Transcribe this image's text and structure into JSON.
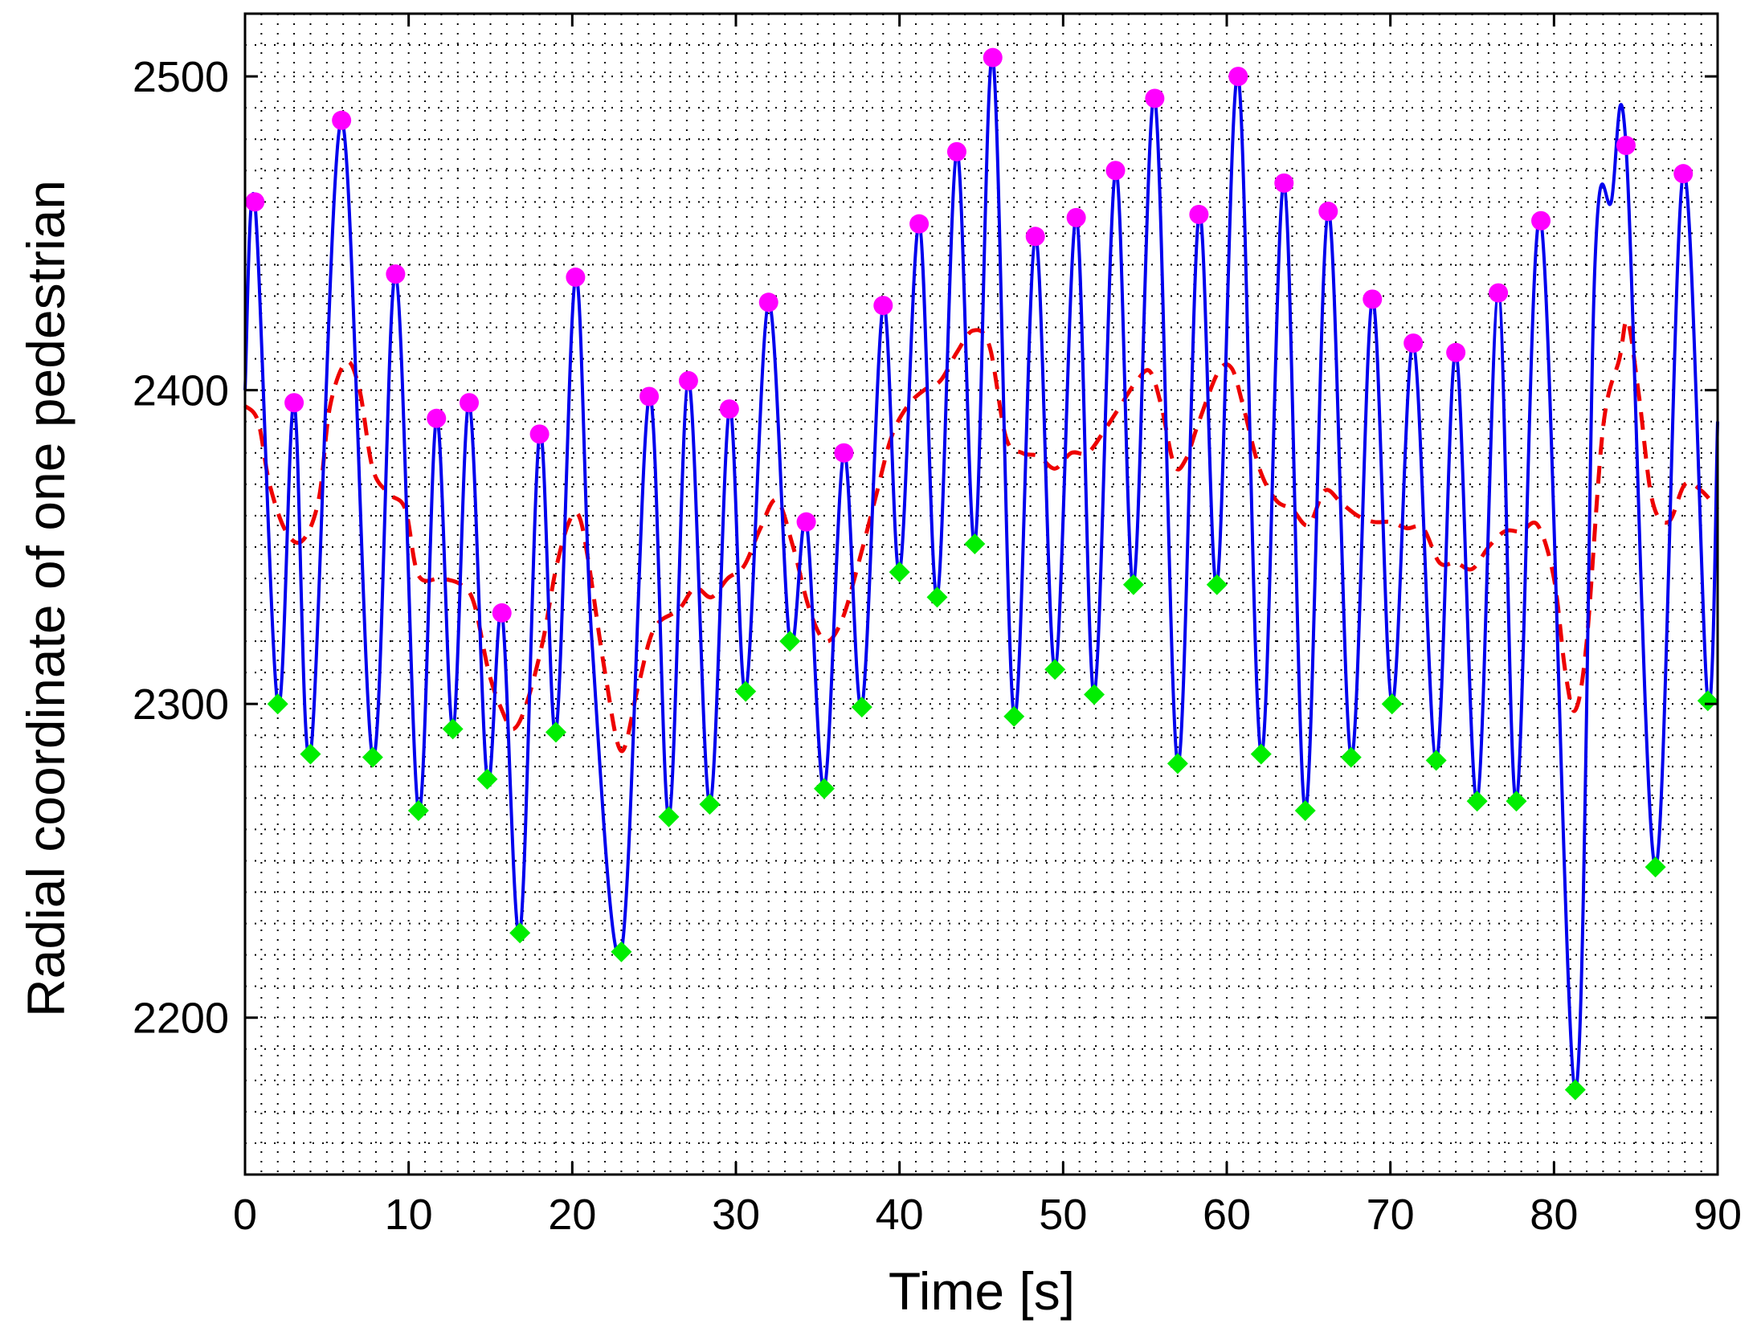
{
  "chart_data": {
    "type": "line",
    "title": "",
    "xlabel": "Time [s]",
    "ylabel": "Radial coordinate of one pedestrian",
    "xlim": [
      0,
      90
    ],
    "ylim": [
      2150,
      2520
    ],
    "xticks": [
      0,
      10,
      20,
      30,
      40,
      50,
      60,
      70,
      80,
      90
    ],
    "yticks": [
      2200,
      2300,
      2400,
      2500
    ],
    "xtick_labels": [
      "0",
      "10",
      "20",
      "30",
      "40",
      "50",
      "60",
      "70",
      "80",
      "90"
    ],
    "ytick_labels": [
      "2200",
      "2300",
      "2400",
      "2500"
    ],
    "grid": "dotted",
    "legend": "none",
    "colors": {
      "trajectory": "#0000ee",
      "smoothed": "#ee0000",
      "maxima": "#ff00ff",
      "minima": "#00ee00"
    },
    "series": [
      {
        "role": "trajectory",
        "style": "solid",
        "points": [
          [
            0,
            2400
          ],
          [
            0.6,
            2460
          ],
          [
            2.0,
            2300
          ],
          [
            3.0,
            2396
          ],
          [
            4.0,
            2284
          ],
          [
            5.9,
            2486
          ],
          [
            7.8,
            2283
          ],
          [
            9.2,
            2437
          ],
          [
            10.6,
            2266
          ],
          [
            11.7,
            2391
          ],
          [
            12.7,
            2292
          ],
          [
            13.7,
            2396
          ],
          [
            14.8,
            2276
          ],
          [
            15.7,
            2329
          ],
          [
            16.8,
            2227
          ],
          [
            18.0,
            2386
          ],
          [
            19.0,
            2291
          ],
          [
            20.2,
            2436
          ],
          [
            21.2,
            2320
          ],
          [
            23.0,
            2221
          ],
          [
            24.7,
            2398
          ],
          [
            25.9,
            2264
          ],
          [
            27.1,
            2403
          ],
          [
            28.4,
            2268
          ],
          [
            29.6,
            2394
          ],
          [
            30.6,
            2304
          ],
          [
            32.0,
            2428
          ],
          [
            33.3,
            2320
          ],
          [
            34.3,
            2358
          ],
          [
            35.4,
            2273
          ],
          [
            36.6,
            2380
          ],
          [
            37.7,
            2299
          ],
          [
            39.0,
            2427
          ],
          [
            40.0,
            2342
          ],
          [
            41.2,
            2453
          ],
          [
            42.3,
            2334
          ],
          [
            43.5,
            2476
          ],
          [
            44.6,
            2351
          ],
          [
            45.7,
            2506
          ],
          [
            47.0,
            2296
          ],
          [
            48.3,
            2449
          ],
          [
            49.5,
            2311
          ],
          [
            50.8,
            2455
          ],
          [
            51.9,
            2303
          ],
          [
            53.2,
            2470
          ],
          [
            54.3,
            2338
          ],
          [
            55.6,
            2493
          ],
          [
            57.0,
            2281
          ],
          [
            58.3,
            2456
          ],
          [
            59.4,
            2338
          ],
          [
            60.7,
            2500
          ],
          [
            62.1,
            2284
          ],
          [
            63.5,
            2466
          ],
          [
            64.8,
            2266
          ],
          [
            66.2,
            2457
          ],
          [
            67.6,
            2283
          ],
          [
            68.9,
            2429
          ],
          [
            70.1,
            2300
          ],
          [
            71.4,
            2415
          ],
          [
            72.8,
            2282
          ],
          [
            74.0,
            2412
          ],
          [
            75.3,
            2269
          ],
          [
            76.6,
            2431
          ],
          [
            77.7,
            2269
          ],
          [
            79.2,
            2454
          ],
          [
            81.3,
            2177
          ],
          [
            82.5,
            2440
          ],
          [
            83.5,
            2460
          ],
          [
            84.4,
            2478
          ],
          [
            86.2,
            2248
          ],
          [
            87.9,
            2469
          ],
          [
            89.4,
            2301
          ],
          [
            90.0,
            2390
          ]
        ]
      },
      {
        "role": "smoothed",
        "style": "dashed",
        "points": [
          [
            0,
            2395
          ],
          [
            0.8,
            2390
          ],
          [
            1.5,
            2370
          ],
          [
            2.5,
            2355
          ],
          [
            3.5,
            2352
          ],
          [
            4.5,
            2365
          ],
          [
            5.2,
            2395
          ],
          [
            6.2,
            2409
          ],
          [
            7.0,
            2400
          ],
          [
            7.8,
            2375
          ],
          [
            8.8,
            2367
          ],
          [
            9.8,
            2362
          ],
          [
            10.6,
            2341
          ],
          [
            12.0,
            2340
          ],
          [
            13.2,
            2338
          ],
          [
            14.0,
            2332
          ],
          [
            14.9,
            2310
          ],
          [
            15.7,
            2298
          ],
          [
            16.4,
            2292
          ],
          [
            17.2,
            2300
          ],
          [
            18.2,
            2320
          ],
          [
            19.0,
            2343
          ],
          [
            19.8,
            2358
          ],
          [
            20.4,
            2360
          ],
          [
            21.0,
            2345
          ],
          [
            22.0,
            2310
          ],
          [
            23.0,
            2285
          ],
          [
            24.0,
            2305
          ],
          [
            25.0,
            2324
          ],
          [
            26.5,
            2330
          ],
          [
            27.5,
            2337
          ],
          [
            28.5,
            2334
          ],
          [
            29.5,
            2340
          ],
          [
            30.5,
            2344
          ],
          [
            31.5,
            2356
          ],
          [
            32.5,
            2365
          ],
          [
            33.5,
            2350
          ],
          [
            34.5,
            2330
          ],
          [
            35.5,
            2320
          ],
          [
            36.5,
            2327
          ],
          [
            37.5,
            2345
          ],
          [
            38.5,
            2365
          ],
          [
            39.5,
            2385
          ],
          [
            40.5,
            2395
          ],
          [
            41.5,
            2400
          ],
          [
            42.5,
            2403
          ],
          [
            43.5,
            2412
          ],
          [
            44.5,
            2419
          ],
          [
            45.5,
            2414
          ],
          [
            46.5,
            2385
          ],
          [
            47.5,
            2380
          ],
          [
            48.5,
            2379
          ],
          [
            49.5,
            2375
          ],
          [
            50.5,
            2380
          ],
          [
            51.5,
            2380
          ],
          [
            52.5,
            2387
          ],
          [
            53.5,
            2395
          ],
          [
            54.5,
            2403
          ],
          [
            55.3,
            2406
          ],
          [
            56.0,
            2395
          ],
          [
            56.8,
            2376
          ],
          [
            57.5,
            2378
          ],
          [
            58.3,
            2390
          ],
          [
            59.5,
            2406
          ],
          [
            60.3,
            2407
          ],
          [
            61.0,
            2395
          ],
          [
            62.0,
            2375
          ],
          [
            63.0,
            2365
          ],
          [
            64.0,
            2362
          ],
          [
            65.0,
            2357
          ],
          [
            66.0,
            2368
          ],
          [
            67.0,
            2364
          ],
          [
            68.0,
            2360
          ],
          [
            69.0,
            2358
          ],
          [
            70.0,
            2358
          ],
          [
            71.0,
            2356
          ],
          [
            72.0,
            2356
          ],
          [
            73.0,
            2345
          ],
          [
            74.0,
            2345
          ],
          [
            75.0,
            2343
          ],
          [
            76.0,
            2350
          ],
          [
            77.0,
            2355
          ],
          [
            78.0,
            2355
          ],
          [
            79.0,
            2357
          ],
          [
            80.0,
            2340
          ],
          [
            80.7,
            2310
          ],
          [
            81.3,
            2298
          ],
          [
            82.0,
            2320
          ],
          [
            83.0,
            2388
          ],
          [
            84.0,
            2410
          ],
          [
            84.5,
            2422
          ],
          [
            85.2,
            2398
          ],
          [
            86.0,
            2365
          ],
          [
            87.0,
            2358
          ],
          [
            88.0,
            2370
          ],
          [
            89.0,
            2368
          ],
          [
            90.0,
            2362
          ]
        ]
      }
    ],
    "maxima": [
      [
        0.6,
        2460
      ],
      [
        3.0,
        2396
      ],
      [
        5.9,
        2486
      ],
      [
        9.2,
        2437
      ],
      [
        11.7,
        2391
      ],
      [
        13.7,
        2396
      ],
      [
        15.7,
        2329
      ],
      [
        18.0,
        2386
      ],
      [
        20.2,
        2436
      ],
      [
        24.7,
        2398
      ],
      [
        27.1,
        2403
      ],
      [
        29.6,
        2394
      ],
      [
        32.0,
        2428
      ],
      [
        34.3,
        2358
      ],
      [
        36.6,
        2380
      ],
      [
        39.0,
        2427
      ],
      [
        41.2,
        2453
      ],
      [
        43.5,
        2476
      ],
      [
        45.7,
        2506
      ],
      [
        48.3,
        2449
      ],
      [
        50.8,
        2455
      ],
      [
        53.2,
        2470
      ],
      [
        55.6,
        2493
      ],
      [
        58.3,
        2456
      ],
      [
        60.7,
        2500
      ],
      [
        63.5,
        2466
      ],
      [
        66.2,
        2457
      ],
      [
        68.9,
        2429
      ],
      [
        71.4,
        2415
      ],
      [
        74.0,
        2412
      ],
      [
        76.6,
        2431
      ],
      [
        79.2,
        2454
      ],
      [
        84.4,
        2478
      ],
      [
        87.9,
        2469
      ]
    ],
    "minima": [
      [
        2.0,
        2300
      ],
      [
        4.0,
        2284
      ],
      [
        7.8,
        2283
      ],
      [
        10.6,
        2266
      ],
      [
        12.7,
        2292
      ],
      [
        14.8,
        2276
      ],
      [
        16.8,
        2227
      ],
      [
        19.0,
        2291
      ],
      [
        23.0,
        2221
      ],
      [
        25.9,
        2264
      ],
      [
        28.4,
        2268
      ],
      [
        30.6,
        2304
      ],
      [
        33.3,
        2320
      ],
      [
        35.4,
        2273
      ],
      [
        37.7,
        2299
      ],
      [
        40.0,
        2342
      ],
      [
        42.3,
        2334
      ],
      [
        44.6,
        2351
      ],
      [
        47.0,
        2296
      ],
      [
        49.5,
        2311
      ],
      [
        51.9,
        2303
      ],
      [
        54.3,
        2338
      ],
      [
        57.0,
        2281
      ],
      [
        59.4,
        2338
      ],
      [
        62.1,
        2284
      ],
      [
        64.8,
        2266
      ],
      [
        67.6,
        2283
      ],
      [
        70.1,
        2300
      ],
      [
        72.8,
        2282
      ],
      [
        75.3,
        2269
      ],
      [
        77.7,
        2269
      ],
      [
        81.3,
        2177
      ],
      [
        86.2,
        2248
      ],
      [
        89.4,
        2301
      ]
    ]
  }
}
